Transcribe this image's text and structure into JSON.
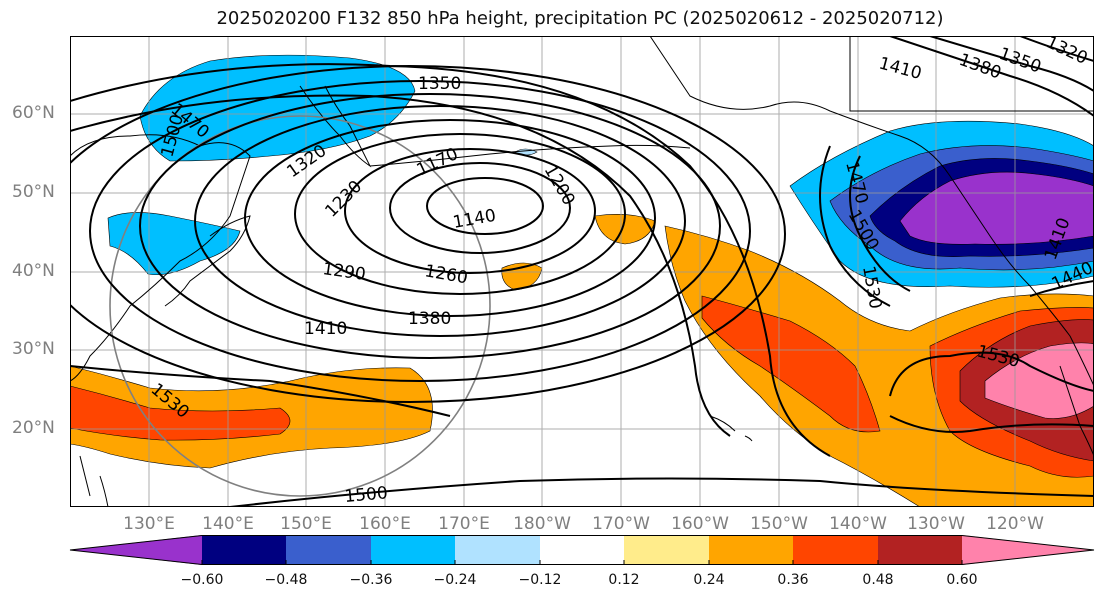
{
  "title": "2025020200 F132 850 hPa height, precipitation PC (2025020612 - 2025020712)",
  "lat_labels": [
    "60°N",
    "50°N",
    "40°N",
    "30°N",
    "20°N"
  ],
  "lon_labels": [
    "130°E",
    "140°E",
    "150°E",
    "160°E",
    "170°E",
    "180°W",
    "170°W",
    "160°W",
    "150°W",
    "140°W",
    "130°W",
    "120°W"
  ],
  "colorbar": {
    "ticks": [
      "−0.60",
      "−0.48",
      "−0.36",
      "−0.24",
      "−0.12",
      "0.12",
      "0.24",
      "0.36",
      "0.48",
      "0.60"
    ],
    "colors": [
      "#9932cc",
      "#000080",
      "#3a5fcd",
      "#00bfff",
      "#b0e2ff",
      "#ffffff",
      "#ffec8b",
      "#ffa500",
      "#ff4500",
      "#b22222",
      "#ff82ab"
    ]
  },
  "contour_labels": [
    "1470",
    "1500",
    "1350",
    "1320",
    "1230",
    "1170",
    "1200",
    "1140",
    "1290",
    "1260",
    "1410",
    "1380",
    "1530",
    "1500",
    "1410",
    "1380",
    "1350",
    "1320",
    "1470",
    "1500",
    "1530",
    "1440",
    "1410",
    "1530"
  ],
  "colors": {
    "height_contour": "#000000",
    "coastline": "#000000",
    "grid": "#999999",
    "circle": "#808080"
  }
}
